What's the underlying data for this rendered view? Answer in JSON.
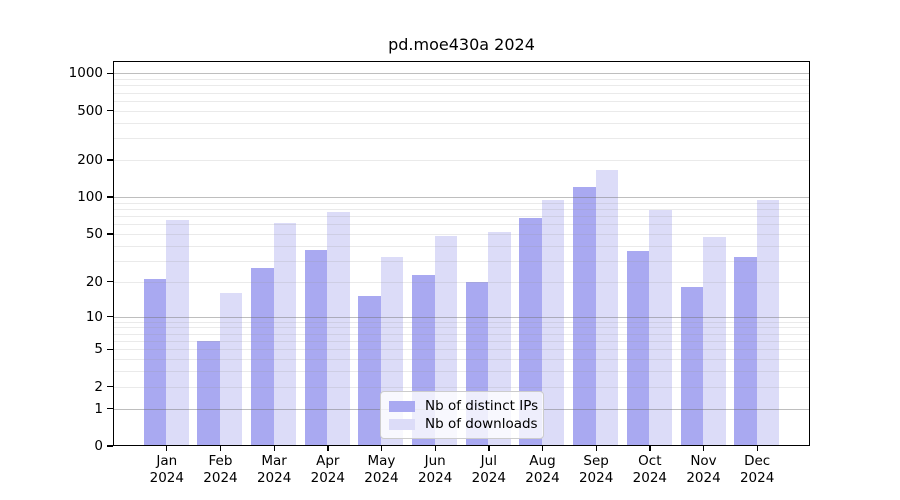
{
  "title": "pd.moe430a 2024",
  "legend": {
    "items": [
      {
        "label": "Nb of distinct IPs",
        "color": "#a9a9f1"
      },
      {
        "label": "Nb of downloads",
        "color": "#dcdcf8"
      }
    ]
  },
  "chart_data": {
    "type": "bar",
    "title": "pd.moe430a 2024",
    "categories": [
      "Jan",
      "Feb",
      "Mar",
      "Apr",
      "May",
      "Jun",
      "Jul",
      "Aug",
      "Sep",
      "Oct",
      "Nov",
      "Dec"
    ],
    "year": "2024",
    "series": [
      {
        "name": "Nb of distinct IPs",
        "color": "#a9a9f1",
        "values": [
          21,
          6,
          26,
          37,
          15,
          23,
          20,
          67,
          120,
          36,
          18,
          32
        ]
      },
      {
        "name": "Nb of downloads",
        "color": "#dcdcf8",
        "values": [
          65,
          16,
          61,
          76,
          32,
          48,
          52,
          95,
          165,
          78,
          47,
          95
        ]
      }
    ],
    "y_ticks": [
      0,
      1,
      2,
      5,
      10,
      20,
      50,
      100,
      200,
      500,
      1000
    ],
    "y_scale": "log10(1+y)",
    "ylim": [
      0,
      1258
    ],
    "xlabel": "",
    "ylabel": "",
    "grid": true,
    "legend_position": "inside-bottom-center"
  }
}
